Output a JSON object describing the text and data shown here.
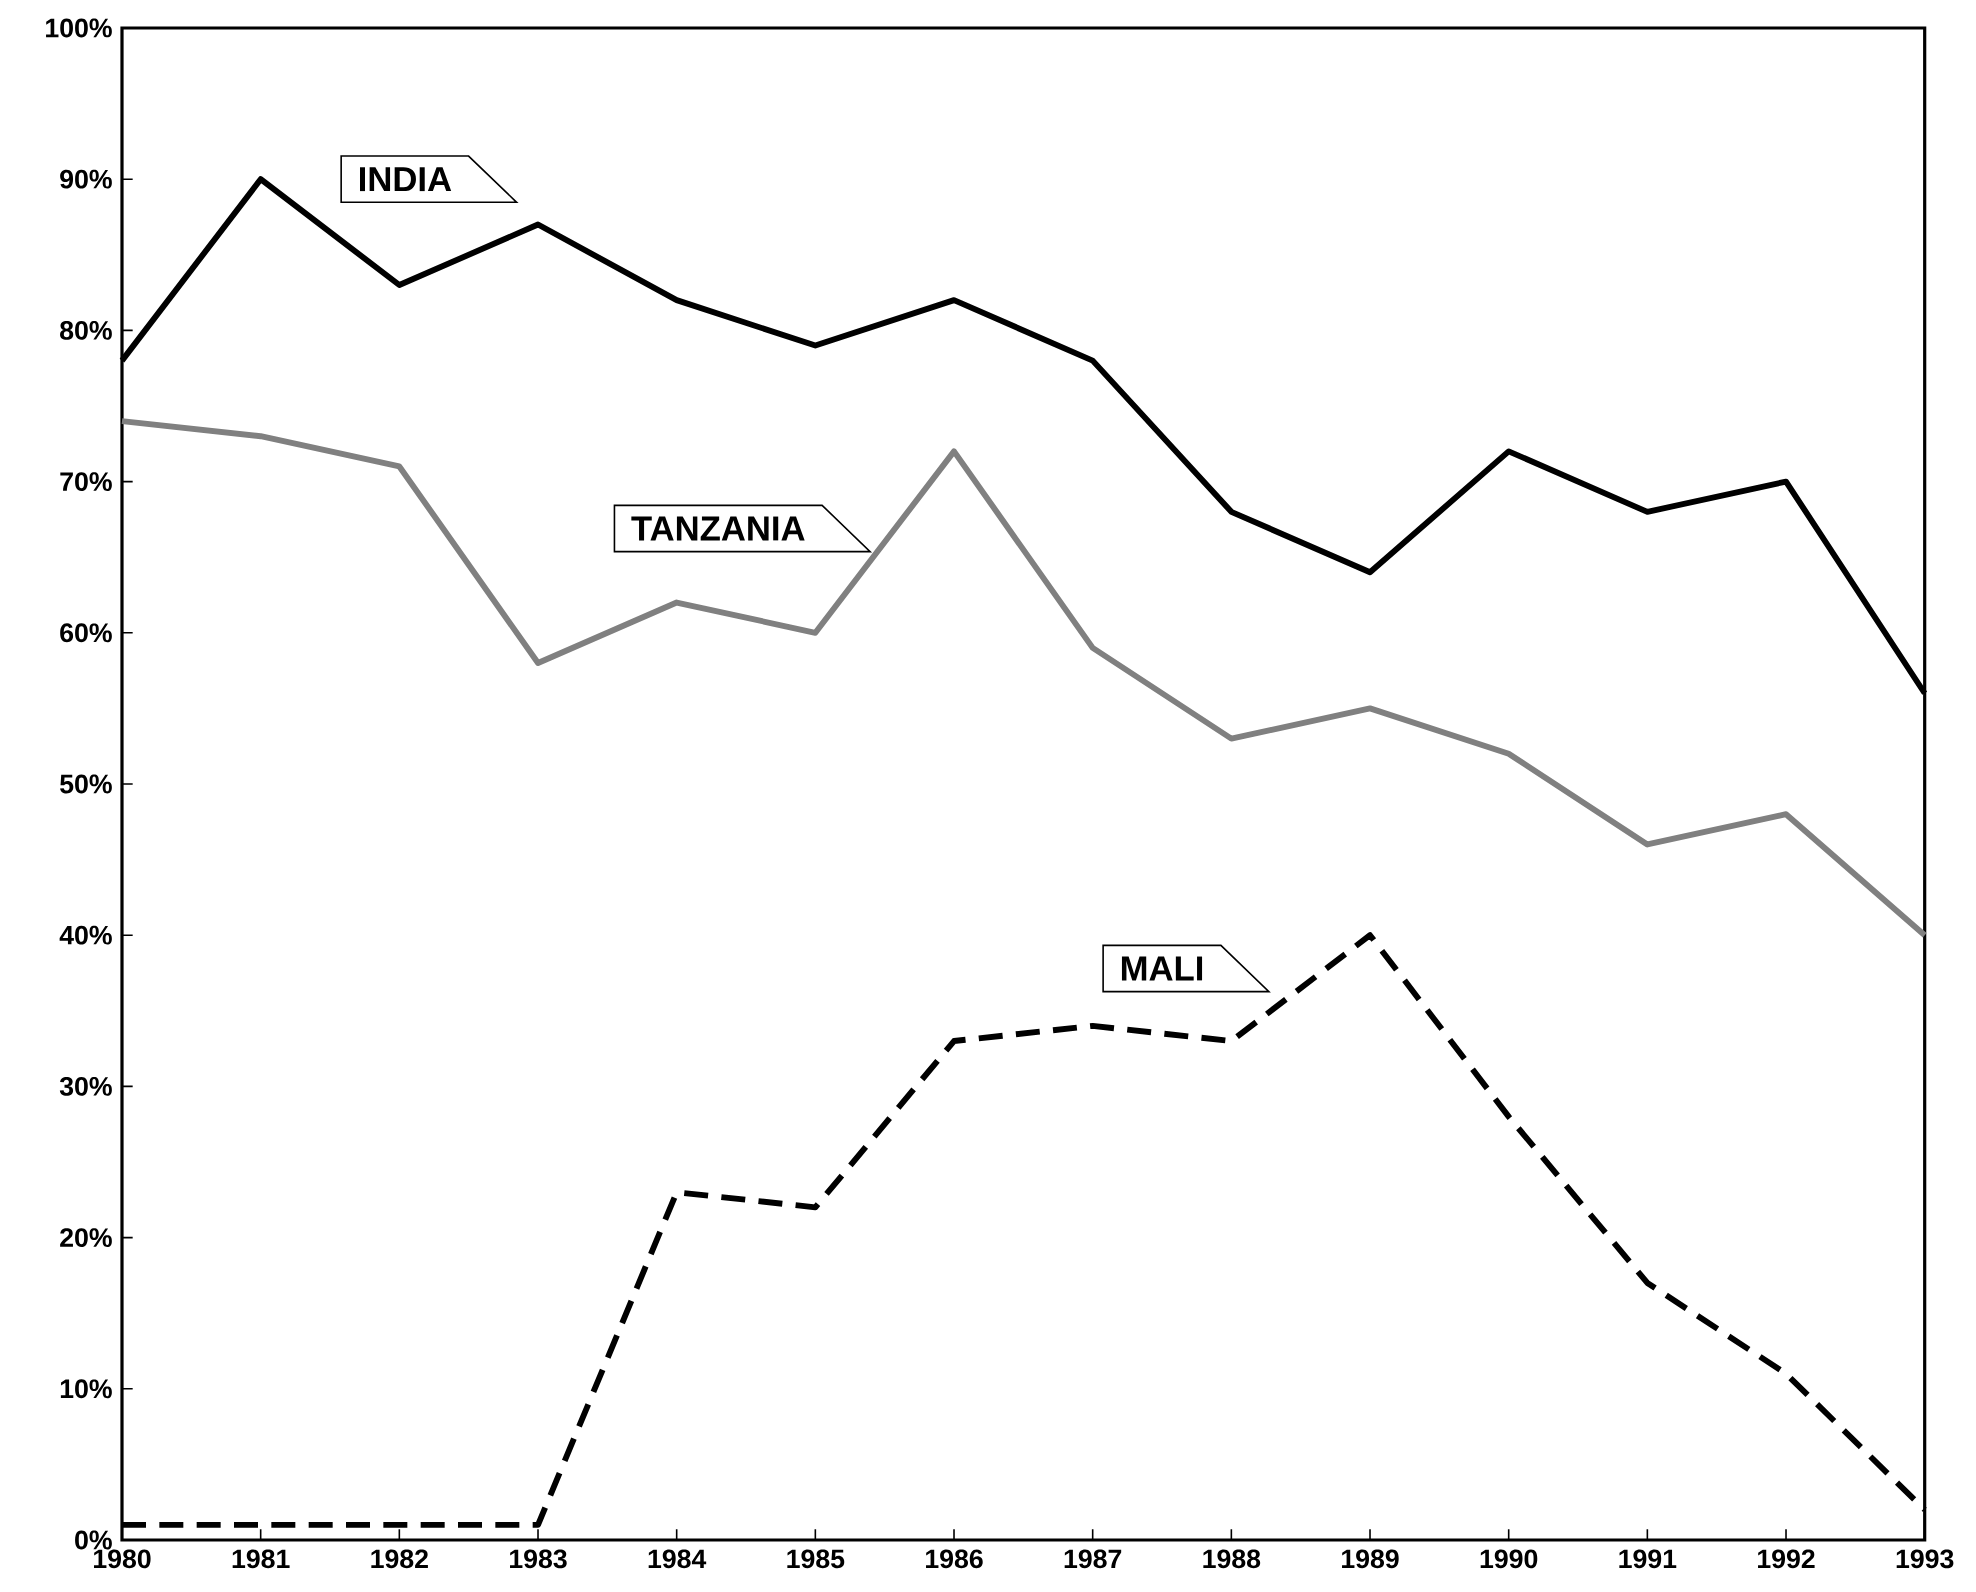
{
  "chart_data": {
    "type": "line",
    "categories": [
      "1980",
      "1981",
      "1982",
      "1983",
      "1984",
      "1985",
      "1986",
      "1987",
      "1988",
      "1989",
      "1990",
      "1991",
      "1992",
      "1993"
    ],
    "series": [
      {
        "name": "INDIA",
        "color": "#000000",
        "line_style": "solid",
        "values": [
          78,
          90,
          83,
          87,
          82,
          79,
          82,
          78,
          68,
          64,
          72,
          68,
          70,
          56
        ]
      },
      {
        "name": "TANZANIA",
        "color": "#808080",
        "line_style": "solid",
        "values": [
          74,
          73,
          71,
          58,
          62,
          60,
          72,
          59,
          53,
          55,
          52,
          46,
          48,
          40
        ]
      },
      {
        "name": "MALI",
        "color": "#000000",
        "line_style": "dashed",
        "values": [
          1,
          1,
          1,
          1,
          23,
          22,
          33,
          34,
          33,
          40,
          28,
          17,
          11,
          2
        ]
      }
    ],
    "ylim": [
      0,
      100
    ],
    "yticks": [
      {
        "value": 0,
        "label": "0%"
      },
      {
        "value": 10,
        "label": "10%"
      },
      {
        "value": 20,
        "label": "20%"
      },
      {
        "value": 30,
        "label": "30%"
      },
      {
        "value": 40,
        "label": "40%"
      },
      {
        "value": 50,
        "label": "50%"
      },
      {
        "value": 60,
        "label": "60%"
      },
      {
        "value": 70,
        "label": "70%"
      },
      {
        "value": 80,
        "label": "80%"
      },
      {
        "value": 90,
        "label": "90%"
      },
      {
        "value": 100,
        "label": "100%"
      }
    ],
    "marker": "none",
    "grid": false,
    "legend": false
  }
}
